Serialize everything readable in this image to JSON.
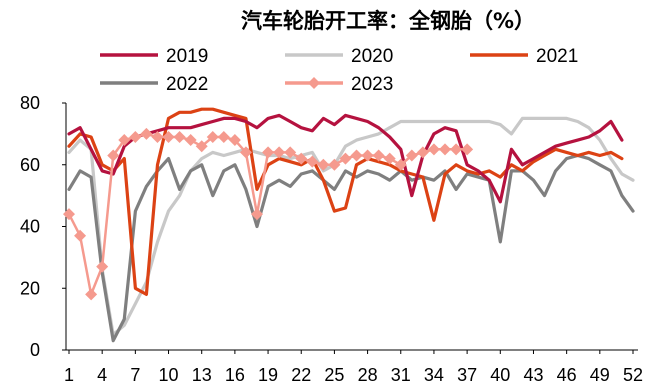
{
  "chart_data": {
    "type": "line",
    "title": "汽车轮胎开工率：全钢胎（%）",
    "xlabel": "",
    "ylabel": "",
    "ylim": [
      0,
      80
    ],
    "yticks": [
      0,
      20,
      40,
      60,
      80
    ],
    "xlim": [
      1,
      52
    ],
    "xticks": [
      1,
      4,
      7,
      10,
      13,
      16,
      19,
      22,
      25,
      28,
      31,
      34,
      37,
      40,
      43,
      46,
      49,
      52
    ],
    "grid": false,
    "legend_position": "top",
    "series": [
      {
        "name": "2019",
        "color": "#b5123f",
        "marker": "none",
        "points": [
          [
            1,
            70
          ],
          [
            2,
            72
          ],
          [
            3,
            65
          ],
          [
            4,
            58
          ],
          [
            5,
            57
          ],
          [
            6,
            66
          ],
          [
            7,
            69
          ],
          [
            8,
            70
          ],
          [
            9,
            71
          ],
          [
            10,
            72
          ],
          [
            11,
            72
          ],
          [
            12,
            72
          ],
          [
            13,
            73
          ],
          [
            14,
            74
          ],
          [
            15,
            75
          ],
          [
            16,
            75
          ],
          [
            17,
            74
          ],
          [
            18,
            72
          ],
          [
            19,
            75
          ],
          [
            20,
            76
          ],
          [
            21,
            74
          ],
          [
            22,
            72
          ],
          [
            23,
            71
          ],
          [
            24,
            75
          ],
          [
            25,
            73
          ],
          [
            26,
            76
          ],
          [
            27,
            75
          ],
          [
            28,
            74
          ],
          [
            29,
            72
          ],
          [
            30,
            69
          ],
          [
            31,
            65
          ],
          [
            32,
            50
          ],
          [
            33,
            63
          ],
          [
            34,
            70
          ],
          [
            35,
            72
          ],
          [
            36,
            71
          ],
          [
            37,
            60
          ],
          [
            38,
            58
          ],
          [
            39,
            55
          ],
          [
            40,
            48
          ],
          [
            41,
            65
          ],
          [
            42,
            60
          ],
          [
            43,
            62
          ],
          [
            44,
            64
          ],
          [
            45,
            66
          ],
          [
            46,
            67
          ],
          [
            47,
            68
          ],
          [
            48,
            69
          ],
          [
            49,
            71
          ],
          [
            50,
            74
          ],
          [
            51,
            68
          ]
        ]
      },
      {
        "name": "2020",
        "color": "#c8c8c8",
        "marker": "none",
        "points": [
          [
            1,
            64
          ],
          [
            2,
            68
          ],
          [
            3,
            65
          ],
          [
            4,
            26
          ],
          [
            5,
            5
          ],
          [
            6,
            8
          ],
          [
            7,
            15
          ],
          [
            8,
            22
          ],
          [
            9,
            35
          ],
          [
            10,
            45
          ],
          [
            11,
            50
          ],
          [
            12,
            58
          ],
          [
            13,
            62
          ],
          [
            14,
            64
          ],
          [
            15,
            63
          ],
          [
            16,
            64
          ],
          [
            17,
            65
          ],
          [
            18,
            64
          ],
          [
            19,
            63
          ],
          [
            20,
            63
          ],
          [
            21,
            62
          ],
          [
            22,
            63
          ],
          [
            23,
            64
          ],
          [
            24,
            58
          ],
          [
            25,
            60
          ],
          [
            26,
            66
          ],
          [
            27,
            68
          ],
          [
            28,
            69
          ],
          [
            29,
            70
          ],
          [
            30,
            72
          ],
          [
            31,
            74
          ],
          [
            32,
            74
          ],
          [
            33,
            74
          ],
          [
            34,
            74
          ],
          [
            35,
            74
          ],
          [
            36,
            74
          ],
          [
            37,
            74
          ],
          [
            38,
            74
          ],
          [
            39,
            74
          ],
          [
            40,
            73
          ],
          [
            41,
            70
          ],
          [
            42,
            75
          ],
          [
            43,
            75
          ],
          [
            44,
            75
          ],
          [
            45,
            75
          ],
          [
            46,
            75
          ],
          [
            47,
            74
          ],
          [
            48,
            72
          ],
          [
            49,
            68
          ],
          [
            50,
            62
          ],
          [
            51,
            57
          ],
          [
            52,
            55
          ]
        ]
      },
      {
        "name": "2021",
        "color": "#dc4214",
        "marker": "none",
        "points": [
          [
            1,
            66
          ],
          [
            2,
            70
          ],
          [
            3,
            69
          ],
          [
            4,
            60
          ],
          [
            5,
            58
          ],
          [
            6,
            62
          ],
          [
            7,
            20
          ],
          [
            8,
            18
          ],
          [
            9,
            60
          ],
          [
            10,
            75
          ],
          [
            11,
            77
          ],
          [
            12,
            77
          ],
          [
            13,
            78
          ],
          [
            14,
            78
          ],
          [
            15,
            77
          ],
          [
            16,
            76
          ],
          [
            17,
            75
          ],
          [
            18,
            52
          ],
          [
            19,
            60
          ],
          [
            20,
            62
          ],
          [
            21,
            61
          ],
          [
            22,
            60
          ],
          [
            23,
            62
          ],
          [
            24,
            55
          ],
          [
            25,
            45
          ],
          [
            26,
            46
          ],
          [
            27,
            60
          ],
          [
            28,
            62
          ],
          [
            29,
            61
          ],
          [
            30,
            60
          ],
          [
            31,
            58
          ],
          [
            32,
            57
          ],
          [
            33,
            56
          ],
          [
            34,
            42
          ],
          [
            35,
            57
          ],
          [
            36,
            60
          ],
          [
            37,
            58
          ],
          [
            38,
            57
          ],
          [
            39,
            58
          ],
          [
            40,
            56
          ],
          [
            41,
            60
          ],
          [
            42,
            58
          ],
          [
            43,
            61
          ],
          [
            44,
            63
          ],
          [
            45,
            65
          ],
          [
            46,
            64
          ],
          [
            47,
            63
          ],
          [
            48,
            64
          ],
          [
            49,
            63
          ],
          [
            50,
            64
          ],
          [
            51,
            62
          ]
        ]
      },
      {
        "name": "2022",
        "color": "#7f7f7f",
        "marker": "none",
        "points": [
          [
            1,
            52
          ],
          [
            2,
            58
          ],
          [
            3,
            56
          ],
          [
            4,
            25
          ],
          [
            5,
            3
          ],
          [
            6,
            10
          ],
          [
            7,
            45
          ],
          [
            8,
            53
          ],
          [
            9,
            58
          ],
          [
            10,
            62
          ],
          [
            11,
            52
          ],
          [
            12,
            58
          ],
          [
            13,
            60
          ],
          [
            14,
            50
          ],
          [
            15,
            58
          ],
          [
            16,
            60
          ],
          [
            17,
            52
          ],
          [
            18,
            40
          ],
          [
            19,
            53
          ],
          [
            20,
            55
          ],
          [
            21,
            53
          ],
          [
            22,
            57
          ],
          [
            23,
            58
          ],
          [
            24,
            55
          ],
          [
            25,
            52
          ],
          [
            26,
            58
          ],
          [
            27,
            56
          ],
          [
            28,
            58
          ],
          [
            29,
            57
          ],
          [
            30,
            55
          ],
          [
            31,
            58
          ],
          [
            32,
            55
          ],
          [
            33,
            56
          ],
          [
            34,
            55
          ],
          [
            35,
            58
          ],
          [
            36,
            52
          ],
          [
            37,
            57
          ],
          [
            38,
            56
          ],
          [
            39,
            55
          ],
          [
            40,
            35
          ],
          [
            41,
            58
          ],
          [
            42,
            58
          ],
          [
            43,
            55
          ],
          [
            44,
            50
          ],
          [
            45,
            58
          ],
          [
            46,
            62
          ],
          [
            47,
            63
          ],
          [
            48,
            62
          ],
          [
            49,
            60
          ],
          [
            50,
            58
          ],
          [
            51,
            50
          ],
          [
            52,
            45
          ]
        ]
      },
      {
        "name": "2023",
        "color": "#f59a8e",
        "marker": "diamond",
        "points": [
          [
            1,
            44
          ],
          [
            2,
            37
          ],
          [
            3,
            18
          ],
          [
            4,
            27
          ],
          [
            5,
            63
          ],
          [
            6,
            68
          ],
          [
            7,
            69
          ],
          [
            8,
            70
          ],
          [
            9,
            69
          ],
          [
            10,
            69
          ],
          [
            11,
            69
          ],
          [
            12,
            68
          ],
          [
            13,
            66
          ],
          [
            14,
            69
          ],
          [
            15,
            69
          ],
          [
            16,
            68
          ],
          [
            17,
            64
          ],
          [
            18,
            44
          ],
          [
            19,
            64
          ],
          [
            20,
            64
          ],
          [
            21,
            64
          ],
          [
            22,
            62
          ],
          [
            23,
            61
          ],
          [
            24,
            60
          ],
          [
            25,
            60
          ],
          [
            26,
            62
          ],
          [
            27,
            63
          ],
          [
            28,
            63
          ],
          [
            29,
            63
          ],
          [
            30,
            62
          ],
          [
            31,
            60
          ],
          [
            32,
            63
          ],
          [
            33,
            64
          ],
          [
            34,
            65
          ],
          [
            35,
            65
          ],
          [
            36,
            65
          ],
          [
            37,
            65
          ]
        ]
      }
    ]
  }
}
